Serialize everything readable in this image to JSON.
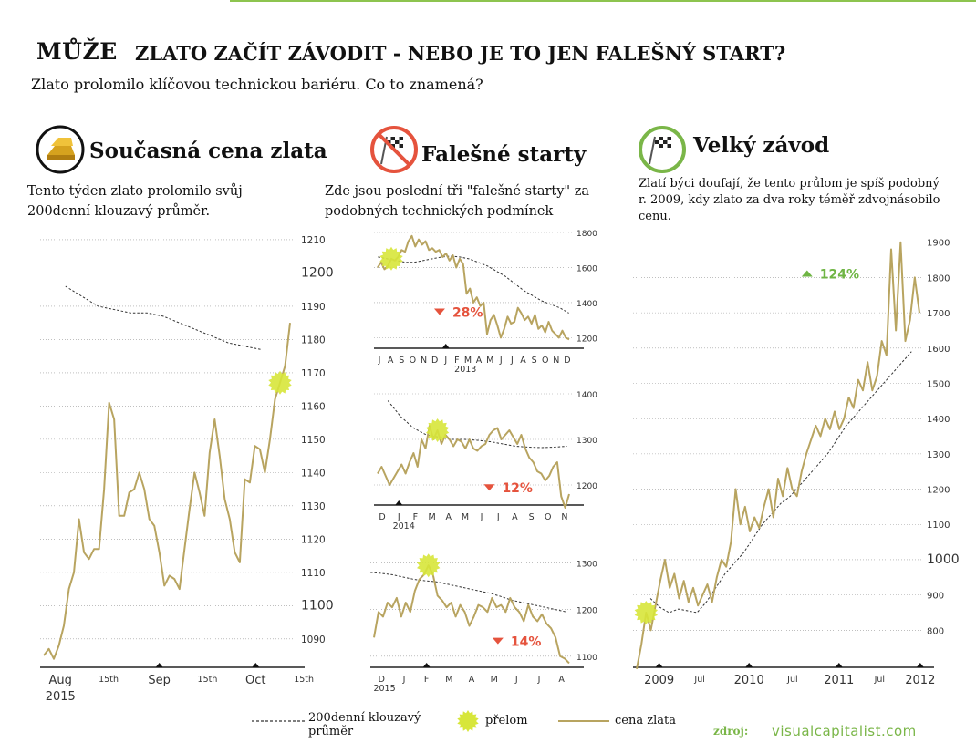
{
  "header": {
    "title_prefix": "MŮŽE",
    "title_main": "ZLATO ZAČÍT ZÁVODIT - NEBO JE TO JEN FALEŠNÝ START?",
    "subtitle": "Zlato prolomilo klíčovou technickou bariéru. Co to znamená?"
  },
  "sections": [
    {
      "title": "Současná cena zlata",
      "text_line1": "Tento týden zlato prolomilo svůj",
      "text_line2": "200denní klouzavý průměr.",
      "icon": "gold-bars-icon"
    },
    {
      "title": "Falešné starty",
      "text_line1": "Zde jsou poslední tři \"falešné starty\" za",
      "text_line2": "podobných technických podmínek",
      "icon": "no-checkered-flag-icon"
    },
    {
      "title": "Velký závod",
      "text_line1": "Zlatí býci doufají, že tento průlom je spíš podobný",
      "text_line2": "r. 2009, kdy zlato za dva roky téměř zdvojnásobilo",
      "text_line3": "cenu.",
      "icon": "checkered-flag-icon"
    }
  ],
  "legend": {
    "moving_avg": "200denní klouzavý",
    "moving_avg_2": "průměr",
    "breakout": "přelom",
    "price": "cena zlata"
  },
  "source": {
    "label": "zdroj:",
    "value": "visualcapitalist.com"
  },
  "colors": {
    "price": "#b8a460",
    "breakout": "#d7e63a",
    "moving_avg": "#333333",
    "down": "#e5533d",
    "up": "#6fb544",
    "accent_green": "#8dc44f"
  },
  "chart_data": [
    {
      "type": "line",
      "id": "current",
      "ylim": [
        1082,
        1213
      ],
      "y_ticks": [
        1090,
        1100,
        1110,
        1120,
        1130,
        1140,
        1150,
        1160,
        1170,
        1180,
        1190,
        1200,
        1210
      ],
      "y_tick_major": [
        1100,
        1200
      ],
      "x_ticks": [
        "Aug",
        "15th",
        "Sep",
        "15th",
        "Oct",
        "15th"
      ],
      "x_year": "2015",
      "series": [
        {
          "name": "cena zlata",
          "values": [
            1085,
            1087,
            1084,
            1088,
            1094,
            1105,
            1110,
            1126,
            1116,
            1114,
            1117,
            1117,
            1135,
            1161,
            1156,
            1127,
            1127,
            1134,
            1135,
            1140,
            1135,
            1126,
            1124,
            1116,
            1106,
            1109,
            1108,
            1105,
            1117,
            1129,
            1140,
            1134,
            1127,
            1146,
            1156,
            1145,
            1132,
            1126,
            1116,
            1113,
            1138,
            1137,
            1148,
            1147,
            1140,
            1150,
            1162,
            1167,
            1172,
            1185
          ]
        },
        {
          "name": "200denní klouzavý průměr",
          "values": [
            1196,
            1193,
            1190,
            1189,
            1188,
            1188,
            1187,
            1185,
            1183,
            1181,
            1179,
            1178,
            1177
          ]
        }
      ],
      "breakout_index": 47
    },
    {
      "type": "line",
      "id": "false-start-2013",
      "ylim": [
        1150,
        1800
      ],
      "y_ticks": [
        1200,
        1400,
        1600,
        1800
      ],
      "x_ticks": [
        "J",
        "A",
        "S",
        "O",
        "N",
        "D",
        "J",
        "F",
        "M",
        "A",
        "M",
        "J",
        "J",
        "A",
        "S",
        "O",
        "N",
        "D"
      ],
      "x_year": "2013",
      "change": "28%",
      "direction": "down",
      "series": [
        {
          "name": "cena zlata",
          "values": [
            1600,
            1630,
            1590,
            1610,
            1650,
            1640,
            1660,
            1700,
            1690,
            1750,
            1780,
            1720,
            1760,
            1730,
            1750,
            1700,
            1710,
            1690,
            1700,
            1660,
            1680,
            1640,
            1670,
            1600,
            1650,
            1620,
            1450,
            1480,
            1400,
            1430,
            1380,
            1400,
            1220,
            1300,
            1330,
            1270,
            1200,
            1250,
            1320,
            1280,
            1290,
            1370,
            1340,
            1300,
            1320,
            1280,
            1330,
            1250,
            1270,
            1230,
            1290,
            1240,
            1220,
            1200,
            1240,
            1200,
            1190
          ]
        },
        {
          "name": "200denní klouzavý průměr",
          "values": [
            1660,
            1650,
            1640,
            1630,
            1630,
            1640,
            1650,
            1660,
            1665,
            1660,
            1650,
            1630,
            1610,
            1580,
            1550,
            1510,
            1470,
            1440,
            1410,
            1390,
            1370,
            1340
          ]
        }
      ],
      "breakout_index": 4
    },
    {
      "type": "line",
      "id": "false-start-2014",
      "ylim": [
        1160,
        1400
      ],
      "y_ticks": [
        1200,
        1300,
        1400
      ],
      "x_ticks": [
        "D",
        "J",
        "F",
        "M",
        "A",
        "M",
        "J",
        "J",
        "A",
        "S",
        "O",
        "N"
      ],
      "x_year": "2014",
      "change": "12%",
      "direction": "down",
      "series": [
        {
          "name": "cena zlata",
          "values": [
            1225,
            1240,
            1220,
            1200,
            1215,
            1230,
            1245,
            1225,
            1250,
            1270,
            1240,
            1300,
            1280,
            1330,
            1300,
            1320,
            1290,
            1310,
            1300,
            1285,
            1300,
            1295,
            1280,
            1300,
            1280,
            1275,
            1285,
            1290,
            1310,
            1320,
            1325,
            1300,
            1310,
            1320,
            1305,
            1290,
            1310,
            1280,
            1260,
            1250,
            1230,
            1225,
            1210,
            1220,
            1240,
            1250,
            1175,
            1150,
            1180
          ]
        },
        {
          "name": "200denní klouzavý průměr",
          "values": [
            1385,
            1350,
            1325,
            1310,
            1305,
            1300,
            1300,
            1298,
            1295,
            1290,
            1285,
            1283,
            1282,
            1283,
            1285
          ]
        }
      ],
      "breakout_index": 15
    },
    {
      "type": "line",
      "id": "false-start-2015",
      "ylim": [
        1080,
        1315
      ],
      "y_ticks": [
        1100,
        1200,
        1300
      ],
      "x_ticks": [
        "D",
        "J",
        "F",
        "M",
        "A",
        "M",
        "J",
        "J",
        "A"
      ],
      "x_year": "2015",
      "change": "14%",
      "direction": "down",
      "series": [
        {
          "name": "cena zlata",
          "values": [
            1140,
            1195,
            1185,
            1215,
            1205,
            1225,
            1185,
            1215,
            1195,
            1240,
            1265,
            1275,
            1295,
            1275,
            1230,
            1220,
            1205,
            1215,
            1185,
            1210,
            1195,
            1165,
            1185,
            1210,
            1205,
            1195,
            1225,
            1205,
            1210,
            1195,
            1225,
            1205,
            1195,
            1175,
            1210,
            1185,
            1175,
            1190,
            1170,
            1160,
            1140,
            1100,
            1095,
            1085
          ]
        },
        {
          "name": "200denní klouzavý průměr",
          "values": [
            1280,
            1278,
            1275,
            1270,
            1265,
            1262,
            1260,
            1255,
            1250,
            1245,
            1240,
            1235,
            1228,
            1220,
            1215,
            1210,
            1205,
            1200,
            1195
          ]
        }
      ],
      "breakout_index": 12
    },
    {
      "type": "line",
      "id": "big-race",
      "ylim": [
        700,
        1920
      ],
      "y_ticks": [
        800,
        900,
        1000,
        1100,
        1200,
        1300,
        1400,
        1500,
        1600,
        1700,
        1800,
        1900
      ],
      "y_tick_major": [
        1000
      ],
      "x_ticks": [
        "2009",
        "Jul",
        "2010",
        "Jul",
        "2011",
        "Jul",
        "2012"
      ],
      "change": "124%",
      "direction": "up",
      "series": [
        {
          "name": "cena zlata",
          "values": [
            690,
            760,
            850,
            800,
            870,
            940,
            1000,
            920,
            960,
            890,
            940,
            880,
            920,
            870,
            900,
            930,
            880,
            950,
            1000,
            980,
            1050,
            1200,
            1100,
            1150,
            1080,
            1120,
            1090,
            1150,
            1200,
            1120,
            1230,
            1180,
            1260,
            1200,
            1180,
            1250,
            1300,
            1340,
            1380,
            1350,
            1400,
            1370,
            1420,
            1370,
            1400,
            1460,
            1430,
            1510,
            1480,
            1560,
            1480,
            1520,
            1620,
            1580,
            1880,
            1650,
            1900,
            1620,
            1680,
            1800,
            1700
          ]
        },
        {
          "name": "200denní klouzavý průměr",
          "values": [
            890,
            865,
            850,
            860,
            855,
            850,
            880,
            920,
            960,
            990,
            1020,
            1060,
            1100,
            1130,
            1160,
            1180,
            1210,
            1240,
            1270,
            1300,
            1340,
            1380,
            1410,
            1440,
            1470,
            1500,
            1530,
            1560,
            1590
          ]
        }
      ],
      "breakout_index": 2
    }
  ]
}
